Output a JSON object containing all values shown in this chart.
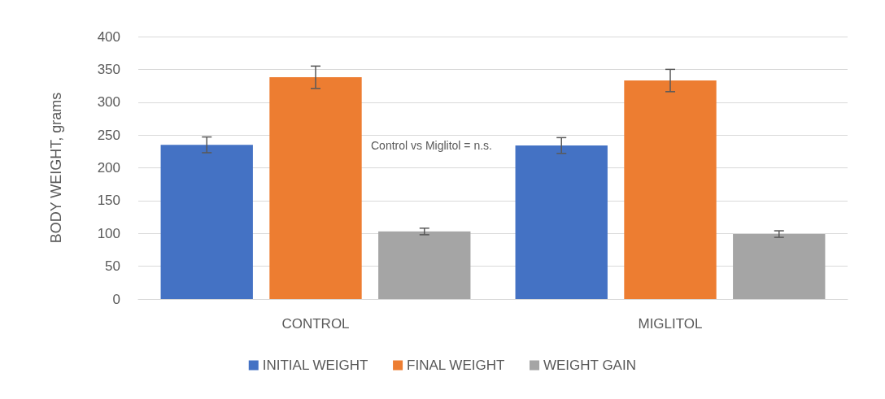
{
  "chart_data": {
    "type": "bar",
    "ylabel": "BODY WEIGHT, grams",
    "categories": [
      "CONTROL",
      "MIGLITOL"
    ],
    "series": [
      {
        "name": "INITIAL WEIGHT",
        "color": "#4472c4",
        "values": [
          235,
          234
        ],
        "errors": [
          12,
          12
        ]
      },
      {
        "name": "FINAL WEIGHT",
        "color": "#ed7d31",
        "values": [
          338,
          333
        ],
        "errors": [
          17,
          17
        ]
      },
      {
        "name": "WEIGHT GAIN",
        "color": "#a5a5a5",
        "values": [
          103,
          99
        ],
        "errors": [
          5,
          5
        ]
      }
    ],
    "ylim": [
      0,
      400
    ],
    "yticks": [
      0,
      50,
      100,
      150,
      200,
      250,
      300,
      350,
      400
    ],
    "grid": "y",
    "legend": "bottom",
    "annotations": [
      "Control vs Miglitol = n.s."
    ]
  }
}
